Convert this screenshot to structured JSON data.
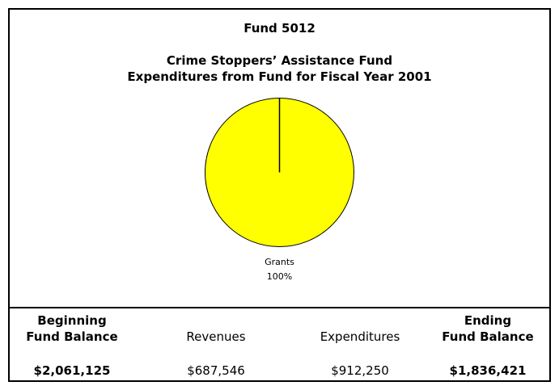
{
  "header": {
    "fund_number": "Fund 5012",
    "title": "Crime Stoppers’ Assistance Fund",
    "subtitle": "Expenditures from Fund for Fiscal Year 2001"
  },
  "chart_data": {
    "type": "pie",
    "title": "Crime Stoppers’ Assistance Fund",
    "subtitle": "Expenditures from Fund for Fiscal Year 2001",
    "slices": [
      {
        "label": "Grants",
        "value": 100,
        "percent_label": "100%",
        "color": "#ffff00"
      }
    ],
    "outline_color": "#000000"
  },
  "summary": [
    {
      "heading_line1": "Beginning",
      "heading_line2": "Fund Balance",
      "value": "$2,061,125"
    },
    {
      "heading_line1": "",
      "heading_line2": "Revenues",
      "value": "$687,546"
    },
    {
      "heading_line1": "",
      "heading_line2": "Expenditures",
      "value": "$912,250"
    },
    {
      "heading_line1": "Ending",
      "heading_line2": "Fund Balance",
      "value": "$1,836,421"
    }
  ]
}
